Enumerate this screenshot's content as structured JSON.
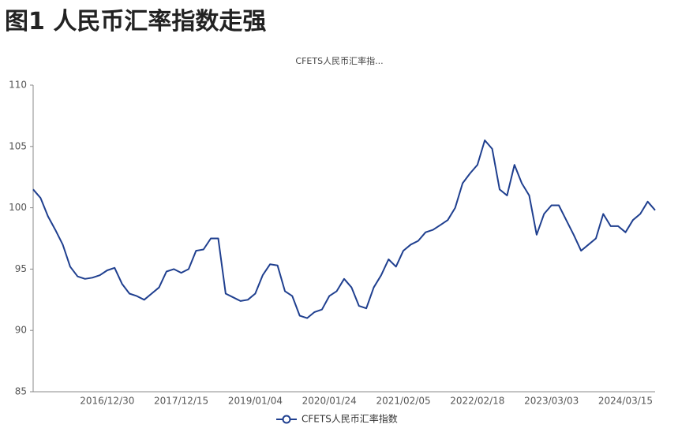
{
  "header": {
    "title": "图1  人民币汇率指数走强"
  },
  "chart_data": {
    "type": "line",
    "subtitle": "CFETS人民币汇率指...",
    "categories": [
      null,
      null,
      null,
      null,
      null,
      null,
      null,
      null,
      null,
      null,
      "2016/12/30",
      null,
      null,
      null,
      null,
      null,
      null,
      null,
      null,
      null,
      "2017/12/15",
      null,
      null,
      null,
      null,
      null,
      null,
      null,
      null,
      null,
      "2019/01/04",
      null,
      null,
      null,
      null,
      null,
      null,
      null,
      null,
      null,
      "2020/01/24",
      null,
      null,
      null,
      null,
      null,
      null,
      null,
      null,
      null,
      "2021/02/05",
      null,
      null,
      null,
      null,
      null,
      null,
      null,
      null,
      null,
      "2022/02/18",
      null,
      null,
      null,
      null,
      null,
      null,
      null,
      null,
      null,
      "2023/03/03",
      null,
      null,
      null,
      null,
      null,
      null,
      null,
      null,
      null,
      "2024/03/15",
      null,
      null,
      null,
      null
    ],
    "series": [
      {
        "name": "CFETS人民币汇率指数",
        "color": "#1f3f8f",
        "values": [
          101.5,
          100.8,
          99.3,
          98.2,
          97.0,
          95.2,
          94.4,
          94.2,
          94.3,
          94.5,
          94.9,
          95.1,
          93.8,
          93.0,
          92.8,
          92.5,
          93.0,
          93.5,
          94.8,
          95.0,
          94.7,
          95.0,
          96.5,
          96.6,
          97.5,
          97.5,
          93.0,
          92.7,
          92.4,
          92.5,
          93.0,
          94.5,
          95.4,
          95.3,
          93.2,
          92.8,
          91.2,
          91.0,
          91.5,
          91.7,
          92.8,
          93.2,
          94.2,
          93.5,
          92.0,
          91.8,
          93.5,
          94.5,
          95.8,
          95.2,
          96.5,
          97.0,
          97.3,
          98.0,
          98.2,
          98.6,
          99.0,
          100.0,
          102.0,
          102.8,
          103.5,
          105.5,
          104.8,
          101.5,
          101.0,
          103.5,
          102.0,
          101.0,
          97.8,
          99.5,
          100.2,
          100.2,
          99.0,
          97.8,
          96.5,
          97.0,
          97.5,
          99.5,
          98.5,
          98.5,
          98.0,
          99.0,
          99.5,
          100.5,
          99.8
        ]
      }
    ],
    "ylim": [
      85,
      110
    ],
    "yticks": [
      85,
      90,
      95,
      100,
      105,
      110
    ],
    "grid": false,
    "legend": "bottom"
  }
}
